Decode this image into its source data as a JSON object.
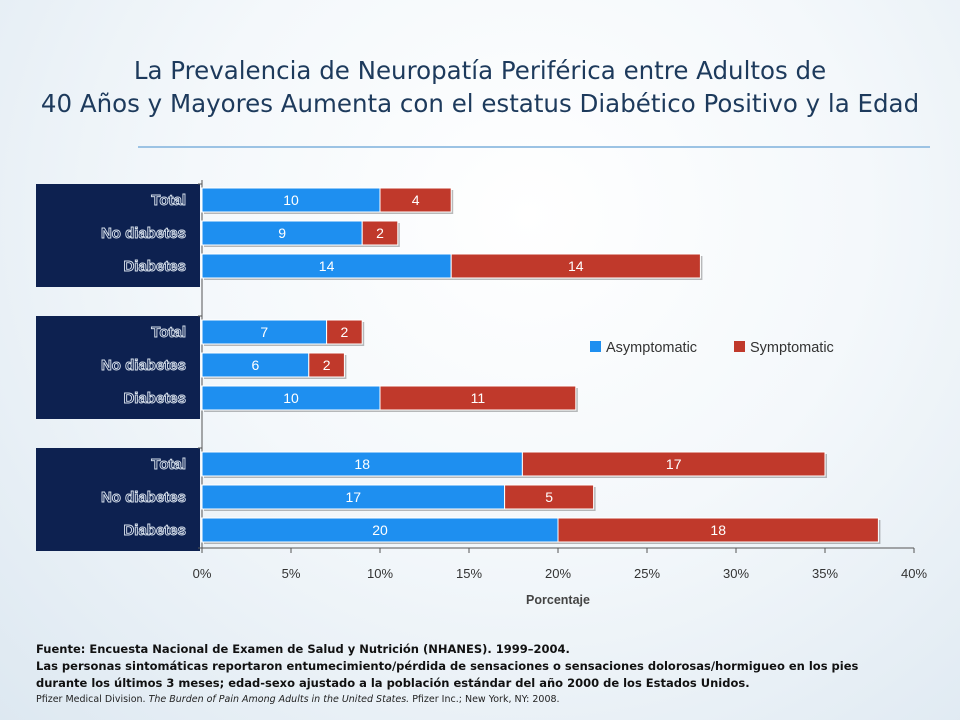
{
  "title": {
    "line1": "La Prevalencia de Neuropatía Periférica entre Adultos de",
    "line2": "40 Años y Mayores Aumenta con el estatus Diabético Positivo y la Edad"
  },
  "colors": {
    "asymptomatic": "#1e8ff0",
    "symptomatic": "#c0392b",
    "group_panel": "#0d2150",
    "title": "#1d3a5c"
  },
  "chart_data": {
    "type": "bar",
    "orientation": "horizontal",
    "stacked": true,
    "xlabel": "Porcentaje",
    "xlim": [
      0,
      40
    ],
    "xticks": [
      "0%",
      "5%",
      "10%",
      "15%",
      "20%",
      "25%",
      "30%",
      "35%",
      "40%"
    ],
    "legend": {
      "placement": "right-middle",
      "items": [
        "Asymptomatic",
        "Symptomatic"
      ]
    },
    "groups": [
      {
        "label": "",
        "categories": [
          "Total",
          "No diabetes",
          "Diabetes"
        ],
        "series": [
          {
            "name": "Asymptomatic",
            "values": [
              10,
              9,
              14
            ]
          },
          {
            "name": "Symptomatic",
            "values": [
              4,
              2,
              14
            ]
          }
        ]
      },
      {
        "label": "",
        "categories": [
          "Total",
          "No diabetes",
          "Diabetes"
        ],
        "series": [
          {
            "name": "Asymptomatic",
            "values": [
              7,
              6,
              10
            ]
          },
          {
            "name": "Symptomatic",
            "values": [
              2,
              2,
              11
            ]
          }
        ]
      },
      {
        "label": "",
        "categories": [
          "Total",
          "No diabetes",
          "Diabetes"
        ],
        "series": [
          {
            "name": "Asymptomatic",
            "values": [
              18,
              17,
              20
            ]
          },
          {
            "name": "Symptomatic",
            "values": [
              17,
              5,
              18
            ]
          }
        ]
      }
    ]
  },
  "footnotes": {
    "source": "Fuente: Encuesta Nacional de Examen de Salud y Nutrición (NHANES).  1999–2004.",
    "line2": "Las personas sintomáticas reportaron entumecimiento/pérdida de sensaciones o sensaciones dolorosas/hormigueo en los pies",
    "line3": "durante los últimos 3 meses; edad-sexo ajustado a la población estándar del año 2000 de los Estados Unidos.",
    "cite_pre": "Pfizer  Medical Division. ",
    "cite_title": "The Burden of Pain Among Adults in the United States.",
    "cite_post": " Pfizer Inc.; New York, NY:  2008."
  }
}
